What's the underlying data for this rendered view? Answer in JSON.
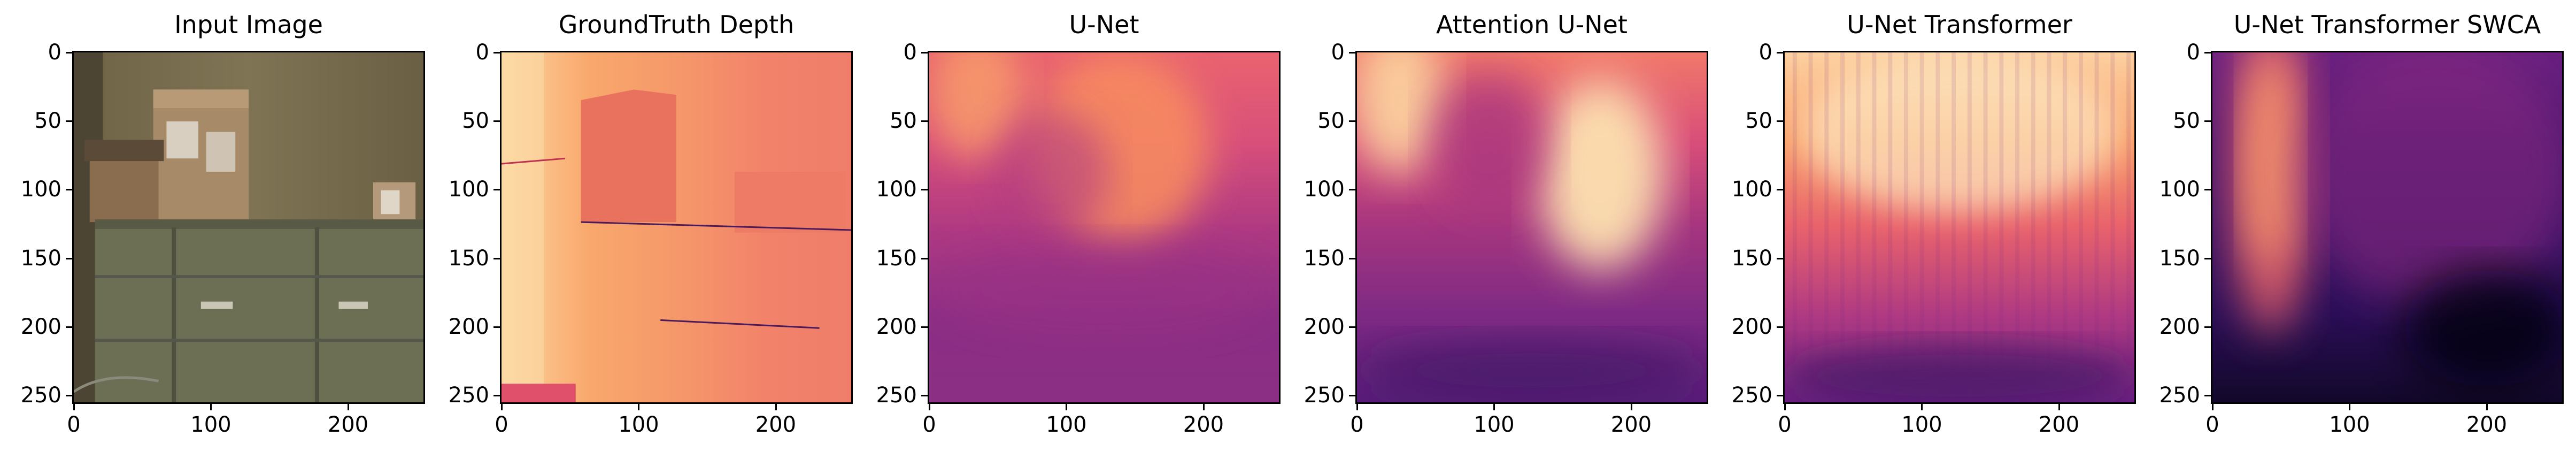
{
  "panels": [
    {
      "title": "Input Image",
      "kind": "photo"
    },
    {
      "title": "GroundTruth Depth",
      "kind": "gt"
    },
    {
      "title": "U-Net",
      "kind": "unet"
    },
    {
      "title": "Attention U-Net",
      "kind": "attn"
    },
    {
      "title": "U-Net Transformer",
      "kind": "trans"
    },
    {
      "title": "U-Net Transformer SWCA",
      "kind": "swca"
    }
  ],
  "axis": {
    "x_ticks": [
      "0",
      "100",
      "200"
    ],
    "x_tick_values": [
      0,
      100,
      200
    ],
    "y_ticks": [
      "0",
      "50",
      "100",
      "150",
      "200",
      "250"
    ],
    "y_tick_values": [
      0,
      50,
      100,
      150,
      200,
      250
    ],
    "range": [
      0,
      255
    ]
  },
  "colormap": {
    "name": "magma",
    "stops": [
      "#0c0820",
      "#2b1160",
      "#5a1e7a",
      "#8c2a81",
      "#c2407a",
      "#e8626c",
      "#f98e5e",
      "#fdc28a",
      "#fcf3cf"
    ]
  }
}
